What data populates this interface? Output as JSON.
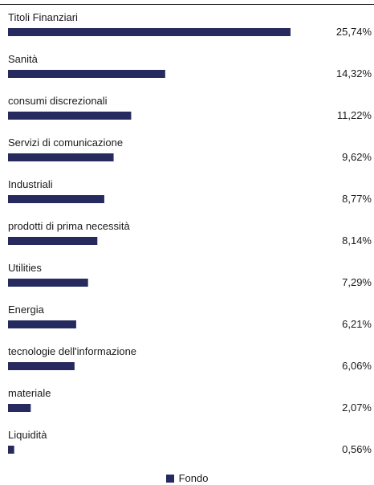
{
  "chart_data": {
    "type": "bar",
    "orientation": "horizontal",
    "categories": [
      "Titoli Finanziari",
      "Sanità",
      "consumi discrezionali",
      "Servizi di comunicazione",
      "Industriali",
      "prodotti di prima necessità",
      "Utilities",
      "Energia",
      "tecnologie dell'informazione",
      "materiale",
      "Liquidità"
    ],
    "series": [
      {
        "name": "Fondo",
        "values": [
          25.74,
          14.32,
          11.22,
          9.62,
          8.77,
          8.14,
          7.29,
          6.21,
          6.06,
          2.07,
          0.56
        ],
        "labels": [
          "25,74%",
          "14,32%",
          "11,22%",
          "9,62%",
          "8,77%",
          "8,14%",
          "7,29%",
          "6,21%",
          "6,06%",
          "2,07%",
          "0,56%"
        ],
        "color": "#262a5e"
      }
    ],
    "legend": {
      "position": "bottom-center"
    },
    "grid": false
  }
}
